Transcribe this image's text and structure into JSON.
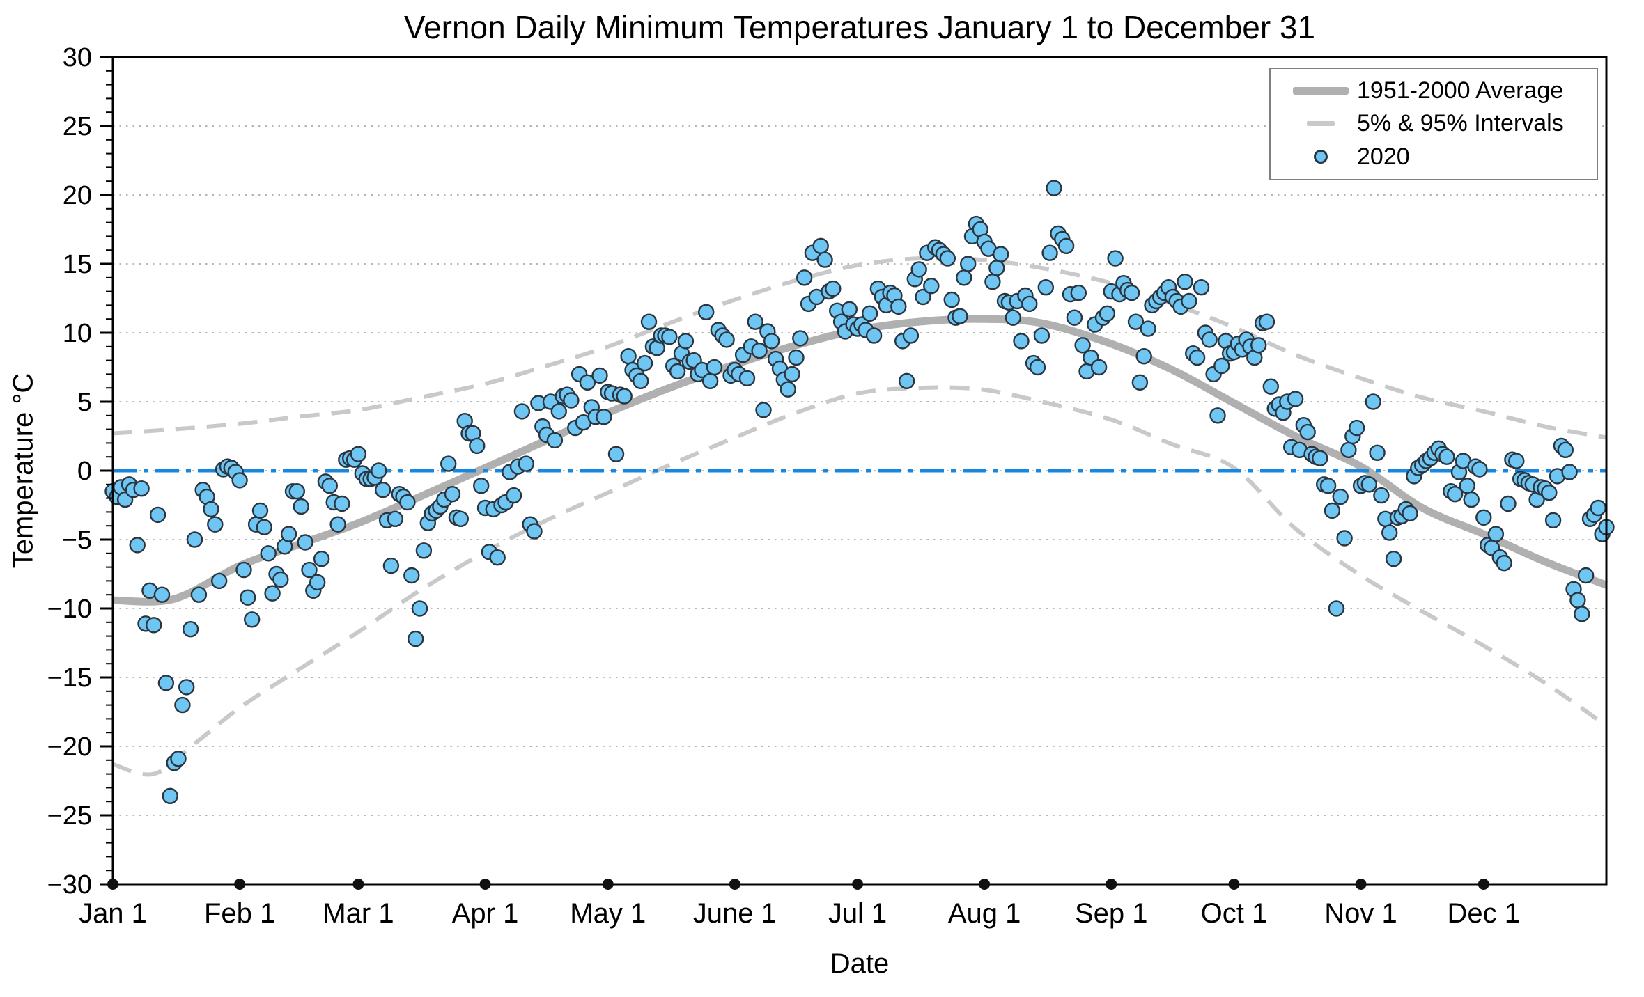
{
  "title": "Vernon Daily Minimum Temperatures January 1 to December 31",
  "axes": {
    "x_label": "Date",
    "y_label": "Temperature °C",
    "x_tick_labels": [
      "Jan 1",
      "Feb 1",
      "Mar 1",
      "Apr 1",
      "May 1",
      "June 1",
      "Jul 1",
      "Aug 1",
      "Sep 1",
      "Oct 1",
      "Nov 1",
      "Dec 1"
    ],
    "x_tick_days": [
      0,
      31,
      60,
      91,
      121,
      152,
      182,
      213,
      244,
      274,
      305,
      335
    ],
    "y_tick_values": [
      30,
      25,
      20,
      15,
      10,
      5,
      0,
      -5,
      -10,
      -15,
      -20,
      -25,
      -30
    ],
    "y_minor_step": 1,
    "grid": "horizontal dotted every 5°C"
  },
  "legend": {
    "items": [
      {
        "label": "1951-2000 Average",
        "swatch": "thick-gray-line"
      },
      {
        "label": "5% & 95% Intervals",
        "swatch": "gray-dash"
      },
      {
        "label": "2020",
        "swatch": "blue-circle-marker"
      }
    ]
  },
  "colors": {
    "scatter_fill": "#6fc6f3",
    "scatter_stroke": "#2a3540",
    "average_line": "#b0b0b0",
    "interval_line": "#c9c9c9",
    "zero_line": "#1787e0",
    "grid_line": "#9e9e9e",
    "axis": "#000000",
    "month_marker": "#111111"
  },
  "chart_data": {
    "type": "scatter",
    "title": "Vernon Daily Minimum Temperatures January 1 to December 31",
    "xlabel": "Date",
    "ylabel": "Temperature °C",
    "xlim_days": [
      0,
      365
    ],
    "ylim": [
      -30,
      30
    ],
    "x_unit": "day of year 2020 (0 = Jan 1, 365 = Dec 31)",
    "zero_reference_line_y": 0,
    "legend_position": "upper right",
    "series": [
      {
        "name": "1951-2000 Average",
        "type": "line",
        "style": "thick solid gray",
        "points": [
          [
            0,
            -9.4
          ],
          [
            15,
            -9.3
          ],
          [
            31,
            -6.9
          ],
          [
            45,
            -5.4
          ],
          [
            60,
            -3.8
          ],
          [
            75,
            -1.9
          ],
          [
            91,
            0.2
          ],
          [
            106,
            2.2
          ],
          [
            121,
            4.2
          ],
          [
            136,
            6.0
          ],
          [
            152,
            7.7
          ],
          [
            167,
            9.1
          ],
          [
            182,
            10.2
          ],
          [
            197,
            10.8
          ],
          [
            212,
            11.0
          ],
          [
            227,
            10.7
          ],
          [
            244,
            9.2
          ],
          [
            259,
            7.3
          ],
          [
            274,
            4.9
          ],
          [
            289,
            2.5
          ],
          [
            305,
            0.3
          ],
          [
            320,
            -2.7
          ],
          [
            335,
            -4.6
          ],
          [
            350,
            -6.6
          ],
          [
            365,
            -8.3
          ]
        ]
      },
      {
        "name": "95% Interval (upper)",
        "type": "line",
        "style": "dashed gray",
        "points": [
          [
            0,
            2.7
          ],
          [
            15,
            3.0
          ],
          [
            31,
            3.4
          ],
          [
            45,
            3.9
          ],
          [
            60,
            4.4
          ],
          [
            75,
            5.3
          ],
          [
            91,
            6.3
          ],
          [
            106,
            7.6
          ],
          [
            121,
            9.0
          ],
          [
            136,
            10.7
          ],
          [
            152,
            12.4
          ],
          [
            167,
            13.8
          ],
          [
            182,
            14.9
          ],
          [
            197,
            15.4
          ],
          [
            212,
            15.3
          ],
          [
            227,
            14.7
          ],
          [
            244,
            13.6
          ],
          [
            259,
            12.1
          ],
          [
            274,
            10.4
          ],
          [
            289,
            8.4
          ],
          [
            305,
            6.7
          ],
          [
            320,
            5.3
          ],
          [
            335,
            4.3
          ],
          [
            350,
            3.2
          ],
          [
            365,
            2.4
          ]
        ]
      },
      {
        "name": "5% Interval (lower)",
        "type": "line",
        "style": "dashed gray",
        "points": [
          [
            0,
            -21.3
          ],
          [
            10,
            -22.0
          ],
          [
            20,
            -19.8
          ],
          [
            31,
            -17.2
          ],
          [
            45,
            -14.5
          ],
          [
            60,
            -11.7
          ],
          [
            75,
            -8.7
          ],
          [
            91,
            -5.9
          ],
          [
            106,
            -3.6
          ],
          [
            121,
            -1.6
          ],
          [
            136,
            0.4
          ],
          [
            152,
            2.4
          ],
          [
            167,
            4.2
          ],
          [
            182,
            5.6
          ],
          [
            197,
            6.0
          ],
          [
            212,
            5.9
          ],
          [
            227,
            5.0
          ],
          [
            244,
            3.7
          ],
          [
            259,
            1.9
          ],
          [
            274,
            0.2
          ],
          [
            289,
            -4.2
          ],
          [
            305,
            -7.6
          ],
          [
            320,
            -10.2
          ],
          [
            335,
            -12.7
          ],
          [
            350,
            -15.4
          ],
          [
            365,
            -18.5
          ]
        ]
      },
      {
        "name": "2020",
        "type": "scatter",
        "style": "light blue circles with dark outline",
        "values_by_day": [
          -1.5,
          -1.9,
          -1.2,
          -2.1,
          -1.0,
          -1.4,
          -5.4,
          -1.3,
          -11.1,
          -8.7,
          -11.2,
          -3.2,
          -9.0,
          -15.4,
          -23.6,
          -21.2,
          -20.9,
          -17.0,
          -15.7,
          -11.5,
          -5.0,
          -9.0,
          -1.4,
          -1.9,
          -2.8,
          -3.9,
          -8.0,
          0.1,
          0.3,
          0.2,
          -0.1,
          -0.7,
          -7.2,
          -9.2,
          -10.8,
          -3.9,
          -2.9,
          -4.1,
          -6.0,
          -8.9,
          -7.5,
          -7.9,
          -5.5,
          -4.6,
          -1.5,
          -1.5,
          -2.6,
          -5.2,
          -7.2,
          -8.7,
          -8.1,
          -6.4,
          -0.8,
          -1.1,
          -2.3,
          -3.9,
          -2.4,
          0.8,
          0.9,
          0.8,
          1.2,
          -0.2,
          -0.6,
          -0.6,
          -0.5,
          0.0,
          -1.4,
          -3.6,
          -6.9,
          -3.5,
          -1.7,
          -1.9,
          -2.3,
          -7.6,
          -12.2,
          -10.0,
          -5.8,
          -3.8,
          -3.1,
          -2.9,
          -2.6,
          -2.1,
          0.5,
          -1.7,
          -3.4,
          -3.5,
          3.6,
          2.7,
          2.7,
          1.8,
          -1.1,
          -2.7,
          -5.9,
          -2.8,
          -6.3,
          -2.5,
          -2.3,
          -0.1,
          -1.8,
          0.3,
          4.3,
          0.5,
          -3.9,
          -4.4,
          4.9,
          3.2,
          2.6,
          5.0,
          2.2,
          4.3,
          5.4,
          5.5,
          5.1,
          3.1,
          7.0,
          3.5,
          6.4,
          4.6,
          3.9,
          6.9,
          3.9,
          5.7,
          5.6,
          1.2,
          5.5,
          5.4,
          8.3,
          7.3,
          6.9,
          6.5,
          7.8,
          10.8,
          9.0,
          8.9,
          9.8,
          9.8,
          9.7,
          7.6,
          7.2,
          8.5,
          9.4,
          7.9,
          8.0,
          7.0,
          7.3,
          11.5,
          6.5,
          7.5,
          10.2,
          9.8,
          9.5,
          6.9,
          7.3,
          7.0,
          8.4,
          6.7,
          9.0,
          10.8,
          8.7,
          4.4,
          10.1,
          9.4,
          8.1,
          7.4,
          6.6,
          5.9,
          7.0,
          8.2,
          9.6,
          14.0,
          12.1,
          15.8,
          12.6,
          16.3,
          15.3,
          13.0,
          13.2,
          11.6,
          10.8,
          10.1,
          11.7,
          10.6,
          10.3,
          10.6,
          10.2,
          11.4,
          9.8,
          13.2,
          12.6,
          12.0,
          12.9,
          12.7,
          11.9,
          9.4,
          6.5,
          9.8,
          13.9,
          14.6,
          12.6,
          15.8,
          13.4,
          16.2,
          16.0,
          15.7,
          15.4,
          12.4,
          11.1,
          11.2,
          14.0,
          15.0,
          17.0,
          17.9,
          17.5,
          16.6,
          16.1,
          13.7,
          14.7,
          15.7,
          12.3,
          12.2,
          11.1,
          12.3,
          9.4,
          12.7,
          12.1,
          7.8,
          7.5,
          9.8,
          13.3,
          15.8,
          20.5,
          17.2,
          16.8,
          16.3,
          12.8,
          11.1,
          12.9,
          9.1,
          7.2,
          8.2,
          10.6,
          7.5,
          11.1,
          11.4,
          13.0,
          15.4,
          12.8,
          13.6,
          13.1,
          12.9,
          10.8,
          6.4,
          8.3,
          10.3,
          12.0,
          12.3,
          12.6,
          12.9,
          13.3,
          12.6,
          12.3,
          11.9,
          13.7,
          12.3,
          8.5,
          8.2,
          13.3,
          10.0,
          9.5,
          7.0,
          4.0,
          7.6,
          9.4,
          8.5,
          8.6,
          9.2,
          8.8,
          9.5,
          9.0,
          8.2,
          9.1,
          10.7,
          10.8,
          6.1,
          4.5,
          4.8,
          4.2,
          5.0,
          1.7,
          5.2,
          1.5,
          3.3,
          2.8,
          1.2,
          1.0,
          0.9,
          -1.0,
          -1.1,
          -2.9,
          -10.0,
          -1.9,
          -4.9,
          1.5,
          2.5,
          3.1,
          -1.1,
          -0.9,
          -1.0,
          5.0,
          1.3,
          -1.8,
          -3.5,
          -4.5,
          -6.4,
          -3.4,
          -3.3,
          -2.8,
          -3.1,
          -0.4,
          0.2,
          0.4,
          0.7,
          0.9,
          1.3,
          1.6,
          1.2,
          1.0,
          -1.5,
          -1.7,
          -0.1,
          0.7,
          -1.1,
          -2.1,
          0.3,
          0.1,
          -3.4,
          -5.4,
          -5.6,
          -4.6,
          -6.3,
          -6.7,
          -2.4,
          0.8,
          0.7,
          -0.6,
          -0.7,
          -0.9,
          -1.0,
          -2.1,
          -1.2,
          -1.3,
          -1.6,
          -3.6,
          -0.4,
          1.8,
          1.5,
          -0.1,
          -8.6,
          -9.4,
          -10.4,
          -7.6,
          -3.5,
          -3.2,
          -2.7,
          -4.6,
          -4.1
        ]
      }
    ]
  }
}
